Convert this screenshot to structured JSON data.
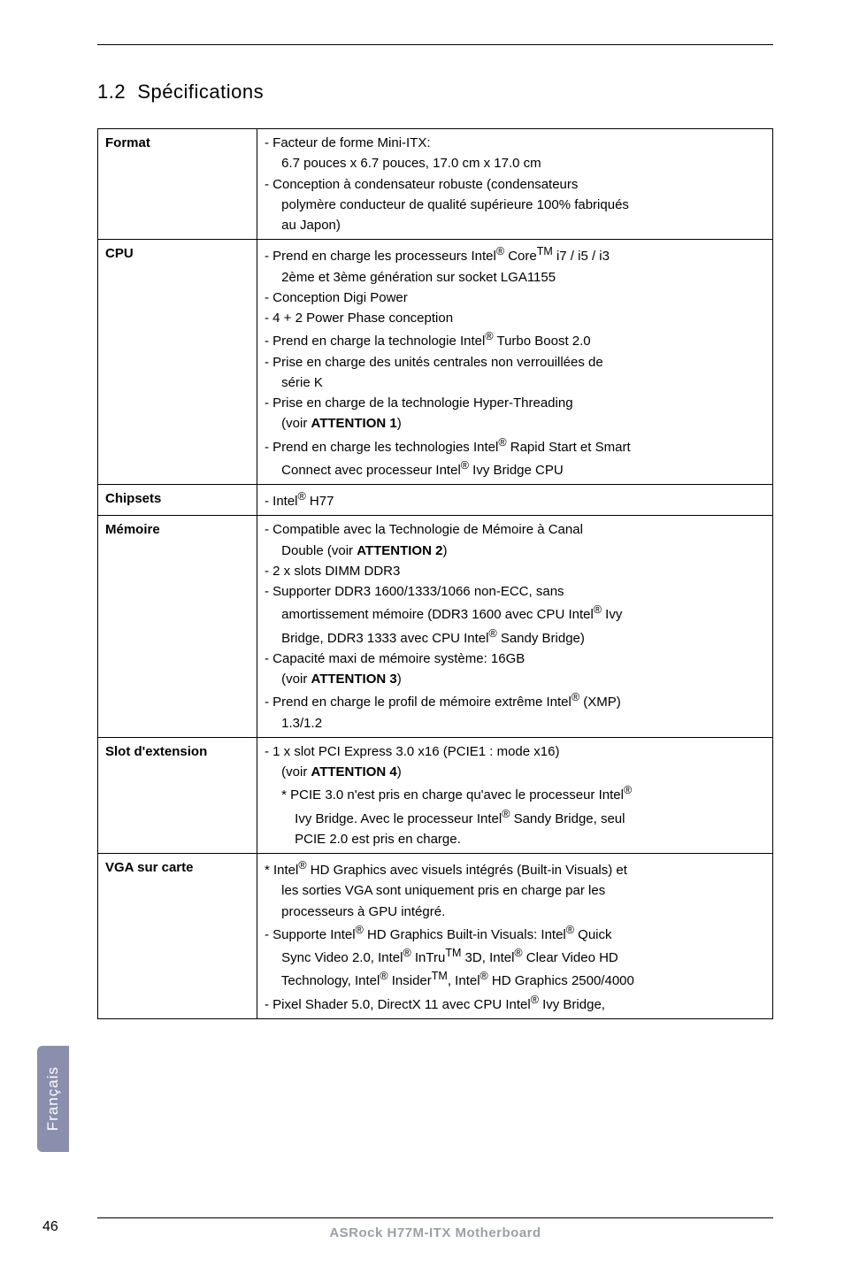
{
  "section_number": "1.2",
  "section_title": "Spécifications",
  "side_tab": "Français",
  "page_number": "46",
  "footer": "ASRock  H77M-ITX  Motherboard",
  "rows": [
    {
      "label": "Format",
      "lines": [
        "- Facteur de forme Mini-ITX:",
        "  6.7 pouces x 6.7 pouces, 17.0 cm x 17.0 cm",
        "- Conception à condensateur robuste (condensateurs",
        "  polymère conducteur de qualité supérieure 100% fabriqués",
        "  au Japon)"
      ]
    },
    {
      "label": "CPU",
      "lines": [
        "- Prend en charge les processeurs Intel<sup>®</sup> Core<sup>TM</sup> i7 / i5 / i3",
        "  2ème et 3ème génération sur socket LGA1155",
        "- Conception Digi Power",
        "- 4 + 2 Power Phase conception",
        "- Prend en charge la technologie Intel<sup>®</sup> Turbo Boost 2.0",
        "- Prise en charge des unités centrales non verrouillées de",
        "  série K",
        "- Prise en charge de la technologie Hyper-Threading",
        "  (voir <b>ATTENTION 1</b>)",
        "- Prend en charge les technologies Intel<sup>®</sup> Rapid Start et Smart",
        "  Connect avec processeur Intel<sup>®</sup> Ivy Bridge CPU"
      ]
    },
    {
      "label": "Chipsets",
      "lines": [
        "- Intel<sup>®</sup> H77"
      ]
    },
    {
      "label": "Mémoire",
      "lines": [
        "- Compatible avec la Technologie de Mémoire à Canal",
        "  Double (voir <b>ATTENTION 2</b>)",
        "- 2 x slots DIMM DDR3",
        "- Supporter DDR3 1600/1333/1066 non-ECC, sans",
        "  amortissement mémoire (DDR3 1600 avec CPU Intel<sup>®</sup> Ivy",
        "  Bridge, DDR3 1333 avec CPU Intel<sup>®</sup> Sandy Bridge)",
        "- Capacité maxi de mémoire système: 16GB",
        "  (voir <b>ATTENTION 3</b>)",
        "- Prend en charge le profil de mémoire extrême Intel<sup>®</sup> (XMP)",
        "  1.3/1.2"
      ]
    },
    {
      "label": "Slot d'extension",
      "lines": [
        "- 1 x slot PCI Express 3.0 x16 (PCIE1 : mode x16)",
        "  (voir <b>ATTENTION 4</b>)",
        "  * PCIE 3.0 n'est pris en charge qu'avec le processeur Intel<sup>®</sup>",
        "   Ivy Bridge. Avec le processeur Intel<sup>®</sup> Sandy Bridge, seul",
        "   PCIE 2.0 est pris en charge."
      ]
    },
    {
      "label": "VGA sur carte",
      "lines": [
        "* Intel<sup>®</sup> HD Graphics avec visuels intégrés (Built-in Visuals) et",
        "  les sorties VGA sont uniquement pris en charge par les",
        "  processeurs à GPU intégré.",
        "- Supporte Intel<sup>®</sup> HD Graphics Built-in Visuals: Intel<sup>®</sup> Quick",
        "  Sync Video 2.0, Intel<sup>®</sup> InTru<sup>TM</sup> 3D, Intel<sup>®</sup> Clear Video HD",
        "  Technology, Intel<sup>®</sup> Insider<sup>TM</sup>, Intel<sup>®</sup> HD Graphics 2500/4000",
        "- Pixel Shader 5.0, DirectX 11 avec CPU Intel<sup>®</sup> Ivy Bridge,"
      ]
    }
  ]
}
